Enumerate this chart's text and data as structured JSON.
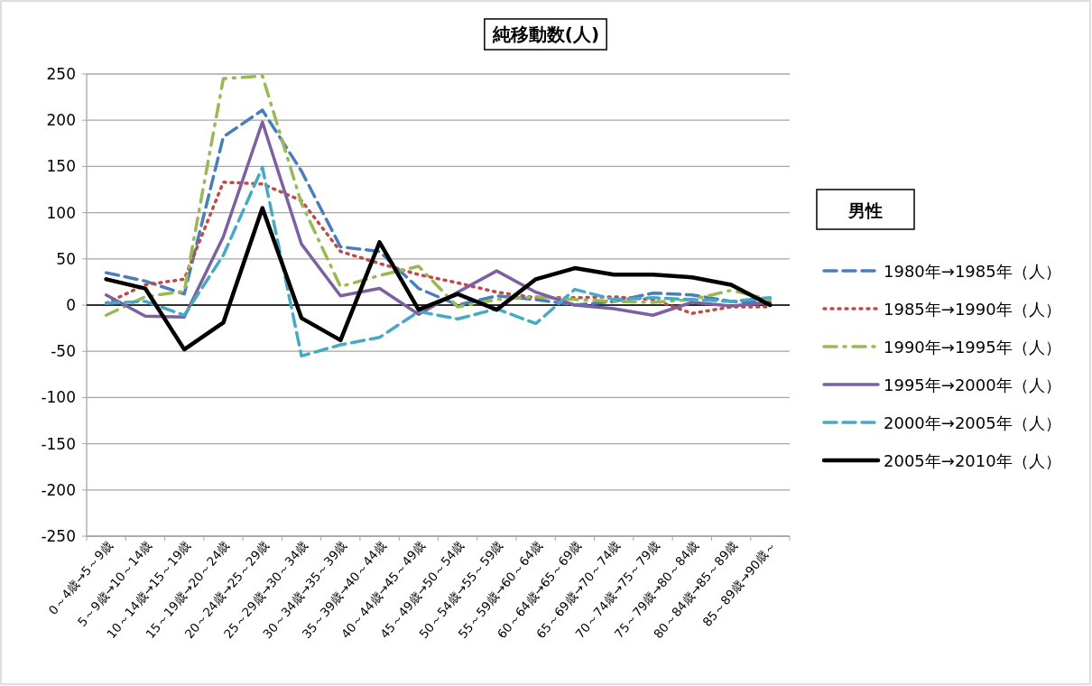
{
  "chart_data": {
    "type": "line",
    "title": "純移動数(人)",
    "legend_title": "男性",
    "categories": [
      "0～4歳→5～9歳",
      "5～9歳→10～14歳",
      "10～14歳→15～19歳",
      "15～19歳→20～24歳",
      "20～24歳→25～29歳",
      "25～29歳→30～34歳",
      "30～34歳→35～39歳",
      "35～39歳→40～44歳",
      "40～44歳→45～49歳",
      "45～49歳→50～54歳",
      "50～54歳→55～59歳",
      "55～59歳→60～64歳",
      "60～64歳→65～69歳",
      "65～69歳→70～74歳",
      "70～74歳→75～79歳",
      "75～79歳→80～84歳",
      "80～84歳→85～89歳",
      "85～89歳→90歳～"
    ],
    "series": [
      {
        "name": "1980年→1985年（人）",
        "color": "#4a7ebb",
        "line_style": "dashed",
        "values": [
          35,
          26,
          12,
          182,
          211,
          145,
          63,
          58,
          18,
          0,
          10,
          6,
          0,
          4,
          13,
          11,
          4,
          3
        ]
      },
      {
        "name": "1985年→1990年（人）",
        "color": "#be4b48",
        "line_style": "dotted",
        "values": [
          2,
          22,
          28,
          133,
          131,
          113,
          58,
          45,
          33,
          24,
          14,
          8,
          8,
          9,
          6,
          -9,
          -2,
          -2
        ]
      },
      {
        "name": "1990年→1995年（人）",
        "color": "#98b954",
        "line_style": "dashdot",
        "values": [
          -11,
          9,
          15,
          245,
          248,
          110,
          20,
          32,
          42,
          -2,
          6,
          9,
          6,
          4,
          3,
          6,
          16,
          6
        ]
      },
      {
        "name": "1995年→2000年（人）",
        "color": "#7d60a0",
        "line_style": "solid",
        "values": [
          11,
          -12,
          -13,
          74,
          198,
          66,
          10,
          18,
          -10,
          14,
          37,
          14,
          0,
          -4,
          -11,
          3,
          -1,
          3
        ]
      },
      {
        "name": "2000年→2005年（人）",
        "color": "#46aac5",
        "line_style": "dashed",
        "values": [
          2,
          4,
          -11,
          54,
          149,
          -55,
          -43,
          -35,
          -7,
          -15,
          -4,
          -20,
          17,
          6,
          8,
          6,
          4,
          8
        ]
      },
      {
        "name": "2005年→2010年（人）",
        "color": "#000000",
        "line_style": "solid",
        "values": [
          28,
          18,
          -48,
          -19,
          105,
          -14,
          -38,
          68,
          -5,
          12,
          -5,
          28,
          40,
          33,
          33,
          30,
          22,
          0
        ]
      }
    ],
    "ylim": [
      -250,
      250
    ],
    "yticks": [
      -250,
      -200,
      -150,
      -100,
      -50,
      0,
      50,
      100,
      150,
      200,
      250
    ],
    "grid": "y",
    "legend": "right",
    "marker": "none"
  }
}
